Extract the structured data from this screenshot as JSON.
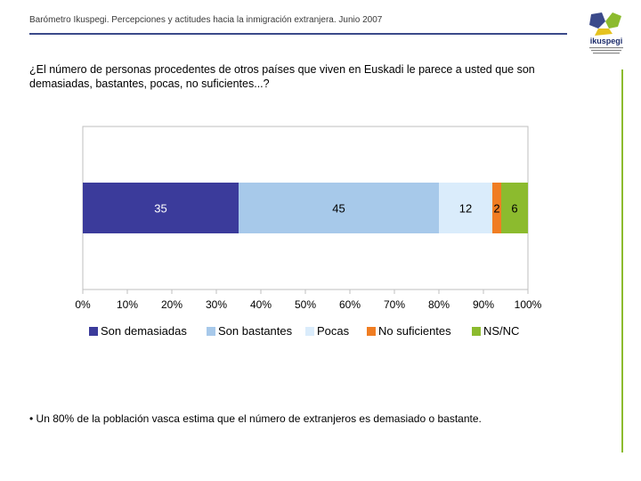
{
  "header": {
    "title": "Barómetro Ikuspegi. Percepciones y actitudes hacia la inmigración extranjera. Junio 2007",
    "logo_text": "ikuspegi"
  },
  "question": "¿El número de personas procedentes de otros países que viven en Euskadi le parece a usted que son demasiadas, bastantes, pocas, no suficientes...?",
  "footnote": "• Un 80% de la población vasca estima que el número de extranjeros es demasiado o bastante.",
  "colors": {
    "accent": "#3b4a8a",
    "side_rule": "#8cbb2e"
  },
  "chart_data": {
    "type": "bar",
    "orientation": "horizontal-stacked",
    "xlim": [
      0,
      100
    ],
    "x_ticks": [
      "0%",
      "10%",
      "20%",
      "30%",
      "40%",
      "50%",
      "60%",
      "70%",
      "80%",
      "90%",
      "100%"
    ],
    "grid": false,
    "legend_position": "bottom",
    "series": [
      {
        "name": "Son demasiadas",
        "values": [
          35
        ],
        "color": "#3b3b9b",
        "label_color": "#ffffff"
      },
      {
        "name": "Son bastantes",
        "values": [
          45
        ],
        "color": "#a7c9ea",
        "label_color": "#000000"
      },
      {
        "name": "Pocas",
        "values": [
          12
        ],
        "color": "#daecfb",
        "label_color": "#000000"
      },
      {
        "name": "No suficientes",
        "values": [
          2
        ],
        "color": "#f07d22",
        "label_color": "#000000"
      },
      {
        "name": "NS/NC",
        "values": [
          6
        ],
        "color": "#8cbb2e",
        "label_color": "#000000"
      }
    ],
    "data_labels": [
      "35",
      "45",
      "12",
      "2",
      "6"
    ]
  }
}
